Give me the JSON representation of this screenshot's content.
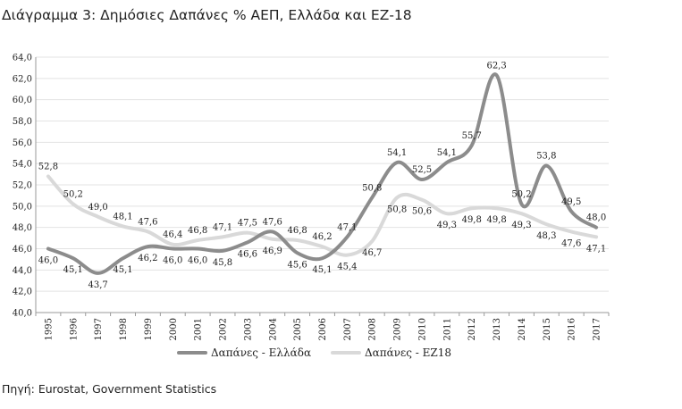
{
  "chart_data": {
    "type": "line",
    "title": "Διάγραμμα 3: Δημόσιες Δαπάνες % ΑΕΠ, Ελλάδα και ΕΖ-18",
    "categories": [
      "1995",
      "1996",
      "1997",
      "1998",
      "1999",
      "2000",
      "2001",
      "2002",
      "2003",
      "2004",
      "2005",
      "2006",
      "2007",
      "2008",
      "2009",
      "2010",
      "2011",
      "2012",
      "2013",
      "2014",
      "2015",
      "2016",
      "2017"
    ],
    "y_ticks": [
      "40,0",
      "42,0",
      "44,0",
      "46,0",
      "48,0",
      "50,0",
      "52,0",
      "54,0",
      "56,0",
      "58,0",
      "60,0",
      "62,0",
      "64,0"
    ],
    "ylim": [
      40,
      64
    ],
    "grid": true,
    "legend_position": "bottom",
    "series": [
      {
        "name": "Δαπάνες - Ελλάδα",
        "color": "#8c8c8c",
        "values": [
          46.0,
          45.1,
          43.7,
          45.1,
          46.2,
          46.0,
          46.0,
          45.8,
          46.6,
          47.6,
          45.6,
          45.1,
          47.1,
          50.8,
          54.1,
          52.5,
          54.1,
          55.7,
          62.3,
          50.2,
          53.8,
          49.5,
          48.0
        ],
        "labels": [
          "46,0",
          "45,1",
          "43,7",
          "45,1",
          "46,2",
          "46,0",
          "46,0",
          "45,8",
          "46,6",
          "47,6",
          "45,6",
          "45,1",
          "47,1",
          "50,8",
          "54,1",
          "52,5",
          "54,1",
          "55,7",
          "62,3",
          "50,2",
          "53,8",
          "49,5",
          "48,0"
        ]
      },
      {
        "name": "Δαπάνες - ΕΖ18",
        "color": "#d9d9d9",
        "values": [
          52.8,
          50.2,
          49.0,
          48.1,
          47.6,
          46.4,
          46.8,
          47.1,
          47.5,
          46.9,
          46.8,
          46.2,
          45.4,
          46.7,
          50.8,
          50.6,
          49.3,
          49.8,
          49.8,
          49.3,
          48.3,
          47.6,
          47.1
        ],
        "labels": [
          "52,8",
          "50,2",
          "49,0",
          "48,1",
          "47,6",
          "46,4",
          "46,8",
          "47,1",
          "47,5",
          "46,9",
          "46,8",
          "46,2",
          "45,4",
          "46,7",
          "50,8",
          "50,6",
          "49,3",
          "49,8",
          "49,8",
          "49,3",
          "48,3",
          "47,6",
          "47,1"
        ]
      }
    ]
  },
  "source": "Πηγή: Eurostat, Government Statistics"
}
